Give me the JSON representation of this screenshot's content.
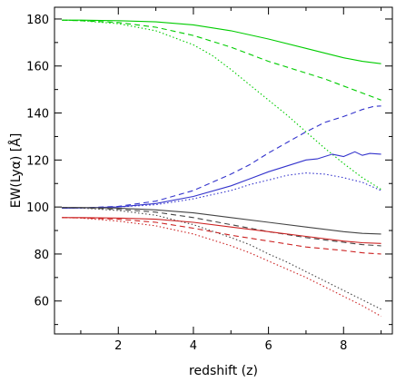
{
  "chart_data": {
    "type": "line",
    "title": "",
    "xlabel": "redshift (z)",
    "ylabel": "EW(Lyα) [Å]",
    "xlim": [
      0.3,
      9.3
    ],
    "ylim": [
      46,
      185
    ],
    "xticks": [
      2,
      4,
      6,
      8
    ],
    "yticks": [
      60,
      80,
      100,
      120,
      140,
      160,
      180
    ],
    "grid": false,
    "legend": "none",
    "series": [
      {
        "color": "#00cc00",
        "style": "solid",
        "x": [
          0.5,
          1,
          2,
          3,
          4,
          5,
          6,
          7,
          8,
          8.5,
          9
        ],
        "y": [
          179.5,
          179.5,
          179.3,
          178.8,
          177.5,
          175.0,
          171.5,
          167.5,
          163.5,
          162.0,
          161.0
        ]
      },
      {
        "color": "#00cc00",
        "style": "dashed",
        "x": [
          0.5,
          1,
          2,
          3,
          4,
          5,
          6,
          7,
          7.5,
          8,
          8.5,
          9
        ],
        "y": [
          179.5,
          179.3,
          178.5,
          176.5,
          173.0,
          168.0,
          162.0,
          157.0,
          154.5,
          151.5,
          148.5,
          145.5
        ]
      },
      {
        "color": "#00cc00",
        "style": "dotted",
        "x": [
          0.5,
          1,
          2,
          3,
          4,
          4.5,
          5,
          5.5,
          6,
          6.5,
          7,
          7.5,
          8,
          8.5,
          9
        ],
        "y": [
          179.5,
          179.3,
          178.0,
          175.0,
          169.0,
          164.5,
          158.5,
          152.0,
          145.5,
          139.0,
          132.0,
          125.0,
          118.5,
          112.5,
          107.5
        ]
      },
      {
        "color": "#3333cc",
        "style": "solid",
        "x": [
          0.5,
          1,
          2,
          3,
          4,
          5,
          5.5,
          6,
          6.5,
          7,
          7.3,
          7.7,
          8,
          8.3,
          8.5,
          8.7,
          9
        ],
        "y": [
          99.5,
          99.6,
          100.0,
          101.5,
          104.5,
          109.0,
          112.0,
          115.0,
          117.5,
          120.0,
          120.5,
          122.5,
          121.5,
          123.5,
          122.0,
          122.8,
          122.5
        ]
      },
      {
        "color": "#3333cc",
        "style": "dashed",
        "x": [
          0.5,
          1,
          2,
          3,
          4,
          5,
          5.5,
          6,
          6.5,
          7,
          7.5,
          8,
          8.5,
          8.8,
          9
        ],
        "y": [
          99.5,
          99.6,
          100.3,
          102.5,
          107.0,
          114.0,
          118.0,
          123.0,
          127.5,
          132.0,
          136.0,
          138.5,
          141.5,
          142.8,
          143.0
        ]
      },
      {
        "color": "#3333cc",
        "style": "dotted",
        "x": [
          0.5,
          1,
          2,
          3,
          4,
          5,
          5.5,
          6,
          6.5,
          7,
          7.5,
          8,
          8.5,
          9
        ],
        "y": [
          99.5,
          99.6,
          100.0,
          101.0,
          103.5,
          107.0,
          109.5,
          111.5,
          113.5,
          114.5,
          114.0,
          112.5,
          110.5,
          107.0
        ]
      },
      {
        "color": "#444444",
        "style": "solid",
        "x": [
          0.5,
          1,
          2,
          3,
          4,
          5,
          6,
          7,
          8,
          8.5,
          9
        ],
        "y": [
          99.8,
          99.8,
          99.5,
          98.8,
          97.5,
          95.5,
          93.5,
          91.5,
          89.5,
          88.8,
          88.5
        ]
      },
      {
        "color": "#444444",
        "style": "dashed",
        "x": [
          0.5,
          1,
          2,
          3,
          4,
          5,
          6,
          7,
          8,
          8.5,
          9
        ],
        "y": [
          99.8,
          99.7,
          99.0,
          97.8,
          95.5,
          92.5,
          89.5,
          87.0,
          85.0,
          84.0,
          83.5
        ]
      },
      {
        "color": "#444444",
        "style": "dotted",
        "x": [
          0.5,
          1,
          2,
          3,
          4,
          5,
          5.5,
          6,
          6.5,
          7,
          7.5,
          8,
          8.5,
          9
        ],
        "y": [
          99.8,
          99.6,
          98.5,
          96.5,
          92.5,
          87.0,
          84.0,
          80.0,
          76.5,
          72.5,
          68.5,
          64.5,
          60.5,
          56.5
        ]
      },
      {
        "color": "#cc2222",
        "style": "solid",
        "x": [
          0.5,
          1,
          2,
          3,
          4,
          5,
          6,
          7,
          8,
          8.5,
          9
        ],
        "y": [
          95.5,
          95.5,
          95.3,
          94.8,
          93.5,
          91.5,
          89.5,
          87.5,
          85.5,
          84.8,
          84.5
        ]
      },
      {
        "color": "#cc2222",
        "style": "dashed",
        "x": [
          0.5,
          1,
          2,
          3,
          4,
          5,
          6,
          7,
          8,
          8.5,
          9
        ],
        "y": [
          95.5,
          95.4,
          94.8,
          93.5,
          91.0,
          88.0,
          85.5,
          83.0,
          81.5,
          80.5,
          80.0
        ]
      },
      {
        "color": "#cc2222",
        "style": "dotted",
        "x": [
          0.5,
          1,
          2,
          3,
          4,
          5,
          5.5,
          6,
          6.5,
          7,
          7.5,
          8,
          8.5,
          9
        ],
        "y": [
          95.5,
          95.3,
          94.0,
          92.0,
          88.5,
          83.5,
          80.5,
          77.0,
          73.5,
          70.0,
          66.0,
          62.0,
          58.0,
          53.5
        ]
      }
    ]
  }
}
